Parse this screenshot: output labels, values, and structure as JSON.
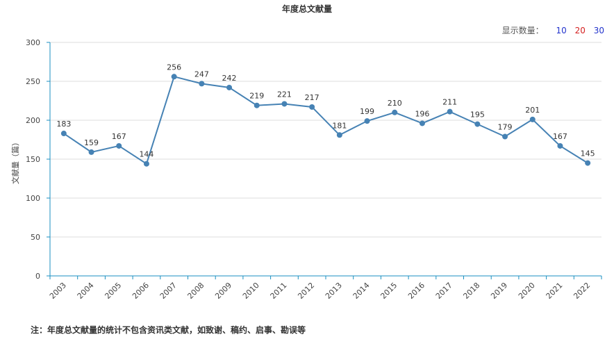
{
  "chart_data": {
    "type": "line",
    "title": "年度总文献量",
    "ylabel": "文献量（篇）",
    "xlabel": "",
    "categories": [
      "2003",
      "2004",
      "2005",
      "2006",
      "2007",
      "2008",
      "2009",
      "2010",
      "2011",
      "2012",
      "2013",
      "2014",
      "2015",
      "2016",
      "2017",
      "2018",
      "2019",
      "2020",
      "2021",
      "2022"
    ],
    "series": [
      {
        "values": [
          183,
          159,
          167,
          144,
          256,
          247,
          242,
          219,
          221,
          217,
          181,
          199,
          210,
          196,
          211,
          195,
          179,
          201,
          167,
          145
        ]
      }
    ],
    "yticks": [
      0,
      50,
      100,
      150,
      200,
      250,
      300
    ],
    "ylim": [
      0,
      300
    ],
    "grid": true,
    "line_color": "#4682b4",
    "axis_color": "#1a8fc0"
  },
  "count_selector": {
    "label": "显示数量：",
    "options": [
      "10",
      "20",
      "30"
    ]
  },
  "note": "注：年度总文献量的统计不包含资讯类文献，如致谢、稿约、启事、勘误等"
}
